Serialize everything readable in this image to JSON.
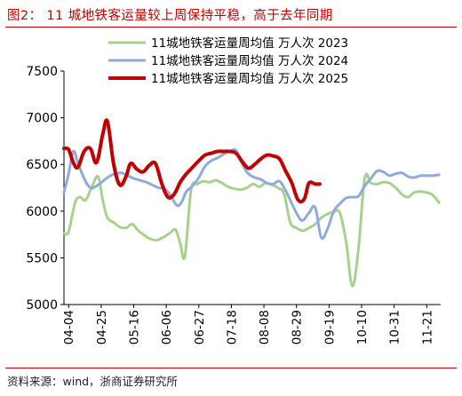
{
  "header": {
    "title": "图2： 11 城地铁客运量较上周保持平稳，高于去年同期"
  },
  "footer": {
    "source": "资料来源：wind，浙商证券研究所"
  },
  "chart_data": {
    "type": "line",
    "title": "",
    "xlabel": "",
    "ylabel": "",
    "ylim": [
      5000,
      7500
    ],
    "yticks": [
      5000,
      5500,
      6000,
      6500,
      7000,
      7500
    ],
    "x_ticks": [
      "04-04",
      "04-25",
      "05-16",
      "06-06",
      "06-27",
      "07-18",
      "08-08",
      "08-29",
      "09-19",
      "10-10",
      "10-31",
      "11-21"
    ],
    "x_range": [
      "04-01",
      "11-30"
    ],
    "grid": false,
    "legend_position": "top",
    "series": [
      {
        "name": "11城地铁客运量周均值 万人次 2023",
        "color": "#a9d18e",
        "width": 3,
        "points": [
          [
            "04-01",
            5760
          ],
          [
            "04-04",
            5780
          ],
          [
            "04-08",
            6080
          ],
          [
            "04-11",
            6150
          ],
          [
            "04-15",
            6120
          ],
          [
            "04-19",
            6260
          ],
          [
            "04-23",
            6370
          ],
          [
            "04-26",
            6120
          ],
          [
            "04-29",
            5930
          ],
          [
            "05-03",
            5880
          ],
          [
            "05-07",
            5830
          ],
          [
            "05-11",
            5820
          ],
          [
            "05-15",
            5860
          ],
          [
            "05-19",
            5790
          ],
          [
            "05-23",
            5740
          ],
          [
            "05-27",
            5700
          ],
          [
            "05-31",
            5690
          ],
          [
            "06-04",
            5720
          ],
          [
            "06-08",
            5760
          ],
          [
            "06-12",
            5800
          ],
          [
            "06-15",
            5650
          ],
          [
            "06-18",
            5520
          ],
          [
            "06-22",
            6230
          ],
          [
            "06-26",
            6290
          ],
          [
            "06-30",
            6320
          ],
          [
            "07-04",
            6310
          ],
          [
            "07-08",
            6330
          ],
          [
            "07-12",
            6300
          ],
          [
            "07-16",
            6260
          ],
          [
            "07-20",
            6240
          ],
          [
            "07-24",
            6230
          ],
          [
            "07-28",
            6250
          ],
          [
            "08-01",
            6290
          ],
          [
            "08-05",
            6260
          ],
          [
            "08-09",
            6300
          ],
          [
            "08-13",
            6280
          ],
          [
            "08-17",
            6250
          ],
          [
            "08-21",
            6180
          ],
          [
            "08-25",
            5880
          ],
          [
            "08-29",
            5820
          ],
          [
            "09-02",
            5790
          ],
          [
            "09-06",
            5820
          ],
          [
            "09-10",
            5860
          ],
          [
            "09-14",
            5930
          ],
          [
            "09-18",
            5970
          ],
          [
            "09-22",
            5990
          ],
          [
            "09-26",
            5980
          ],
          [
            "09-30",
            5670
          ],
          [
            "10-04",
            5200
          ],
          [
            "10-08",
            5600
          ],
          [
            "10-12",
            6350
          ],
          [
            "10-16",
            6300
          ],
          [
            "10-20",
            6290
          ],
          [
            "10-24",
            6310
          ],
          [
            "10-28",
            6300
          ],
          [
            "11-01",
            6250
          ],
          [
            "11-05",
            6180
          ],
          [
            "11-09",
            6150
          ],
          [
            "11-13",
            6200
          ],
          [
            "11-17",
            6210
          ],
          [
            "11-21",
            6200
          ],
          [
            "11-25",
            6170
          ],
          [
            "11-29",
            6090
          ]
        ]
      },
      {
        "name": "11城地铁客运量周均值 万人次 2024",
        "color": "#8faadc",
        "width": 3,
        "points": [
          [
            "04-01",
            6200
          ],
          [
            "04-04",
            6400
          ],
          [
            "04-07",
            6640
          ],
          [
            "04-10",
            6520
          ],
          [
            "04-14",
            6350
          ],
          [
            "04-18",
            6250
          ],
          [
            "04-22",
            6270
          ],
          [
            "04-26",
            6320
          ],
          [
            "04-30",
            6370
          ],
          [
            "05-04",
            6400
          ],
          [
            "05-08",
            6410
          ],
          [
            "05-12",
            6380
          ],
          [
            "05-16",
            6350
          ],
          [
            "05-20",
            6330
          ],
          [
            "05-24",
            6310
          ],
          [
            "05-28",
            6280
          ],
          [
            "06-01",
            6250
          ],
          [
            "06-05",
            6240
          ],
          [
            "06-09",
            6160
          ],
          [
            "06-13",
            6060
          ],
          [
            "06-16",
            6100
          ],
          [
            "06-19",
            6210
          ],
          [
            "06-23",
            6270
          ],
          [
            "06-27",
            6360
          ],
          [
            "07-01",
            6480
          ],
          [
            "07-05",
            6540
          ],
          [
            "07-09",
            6570
          ],
          [
            "07-13",
            6610
          ],
          [
            "07-17",
            6640
          ],
          [
            "07-21",
            6650
          ],
          [
            "07-25",
            6500
          ],
          [
            "07-29",
            6400
          ],
          [
            "08-02",
            6360
          ],
          [
            "08-06",
            6340
          ],
          [
            "08-10",
            6300
          ],
          [
            "08-14",
            6290
          ],
          [
            "08-18",
            6320
          ],
          [
            "08-22",
            6220
          ],
          [
            "08-26",
            6080
          ],
          [
            "08-30",
            5950
          ],
          [
            "09-02",
            5900
          ],
          [
            "09-06",
            5980
          ],
          [
            "09-10",
            6040
          ],
          [
            "09-14",
            5720
          ],
          [
            "09-18",
            5810
          ],
          [
            "09-22",
            6000
          ],
          [
            "09-26",
            6080
          ],
          [
            "09-30",
            6140
          ],
          [
            "10-04",
            6150
          ],
          [
            "10-08",
            6160
          ],
          [
            "10-12",
            6270
          ],
          [
            "10-16",
            6350
          ],
          [
            "10-20",
            6430
          ],
          [
            "10-24",
            6420
          ],
          [
            "10-28",
            6380
          ],
          [
            "11-01",
            6400
          ],
          [
            "11-05",
            6410
          ],
          [
            "11-09",
            6370
          ],
          [
            "11-13",
            6360
          ],
          [
            "11-17",
            6380
          ],
          [
            "11-21",
            6380
          ],
          [
            "11-25",
            6380
          ],
          [
            "11-29",
            6390
          ]
        ]
      },
      {
        "name": "11城地铁客运量周均值 万人次 2025",
        "color": "#c00000",
        "width": 4,
        "points": [
          [
            "04-01",
            6670
          ],
          [
            "04-04",
            6660
          ],
          [
            "04-07",
            6520
          ],
          [
            "04-10",
            6470
          ],
          [
            "04-14",
            6640
          ],
          [
            "04-18",
            6670
          ],
          [
            "04-22",
            6520
          ],
          [
            "04-26",
            6820
          ],
          [
            "04-29",
            6960
          ],
          [
            "05-03",
            6510
          ],
          [
            "05-07",
            6280
          ],
          [
            "05-11",
            6370
          ],
          [
            "05-14",
            6510
          ],
          [
            "05-18",
            6450
          ],
          [
            "05-22",
            6420
          ],
          [
            "05-26",
            6490
          ],
          [
            "05-30",
            6510
          ],
          [
            "06-03",
            6300
          ],
          [
            "06-07",
            6150
          ],
          [
            "06-11",
            6180
          ],
          [
            "06-15",
            6310
          ],
          [
            "06-19",
            6400
          ],
          [
            "06-23",
            6470
          ],
          [
            "06-27",
            6540
          ],
          [
            "07-01",
            6600
          ],
          [
            "07-05",
            6620
          ],
          [
            "07-09",
            6640
          ],
          [
            "07-13",
            6640
          ],
          [
            "07-17",
            6640
          ],
          [
            "07-21",
            6620
          ],
          [
            "07-25",
            6530
          ],
          [
            "07-29",
            6460
          ],
          [
            "08-02",
            6500
          ],
          [
            "08-06",
            6560
          ],
          [
            "08-10",
            6600
          ],
          [
            "08-14",
            6590
          ],
          [
            "08-18",
            6560
          ],
          [
            "08-22",
            6430
          ],
          [
            "08-26",
            6300
          ],
          [
            "08-30",
            6120
          ],
          [
            "09-03",
            6130
          ],
          [
            "09-06",
            6300
          ],
          [
            "09-10",
            6290
          ],
          [
            "09-13",
            6290
          ]
        ]
      }
    ]
  }
}
